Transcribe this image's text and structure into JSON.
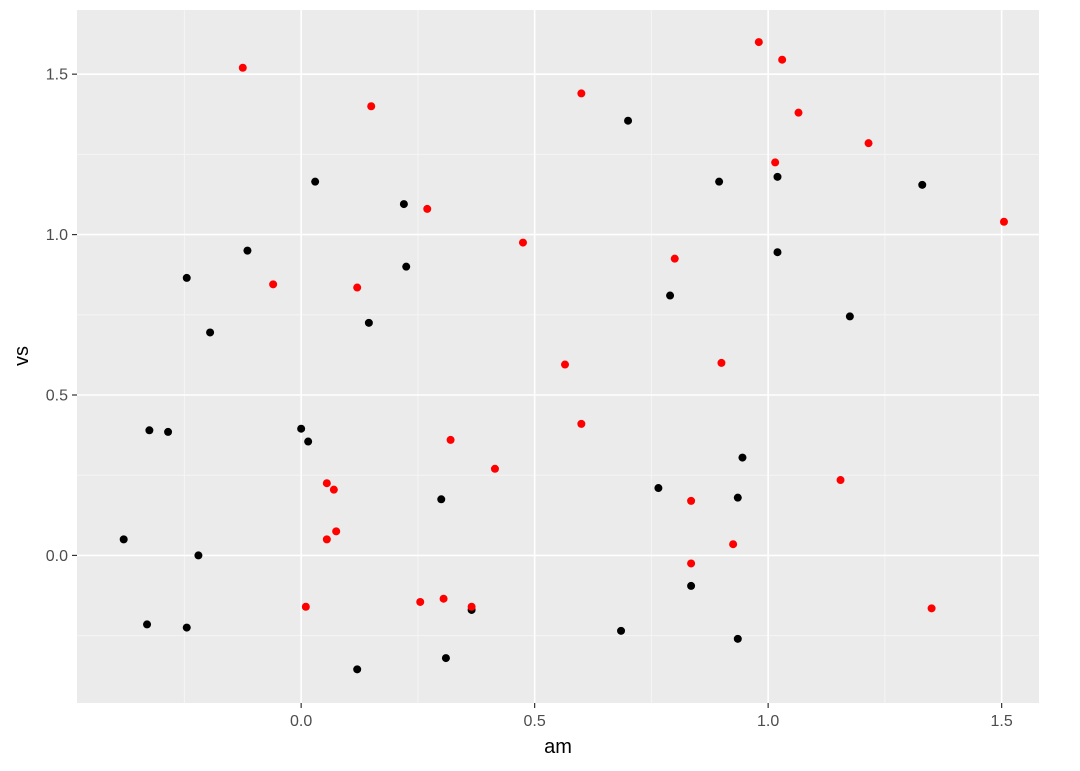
{
  "chart_data": {
    "type": "scatter",
    "xlabel": "am",
    "ylabel": "vs",
    "xlim": [
      -0.48,
      1.58
    ],
    "ylim": [
      -0.46,
      1.7
    ],
    "x_ticks": [
      0.0,
      0.5,
      1.0,
      1.5
    ],
    "x_tick_labels": [
      "0.0",
      "0.5",
      "1.0",
      "1.5"
    ],
    "y_ticks": [
      0.0,
      0.5,
      1.0,
      1.5
    ],
    "y_tick_labels": [
      "0.0",
      "0.5",
      "1.0",
      "1.5"
    ],
    "grid": true,
    "legend": "none",
    "colors": {
      "panel": "#EBEBEB",
      "grid_major": "#FFFFFF",
      "grid_minor": "#F5F5F5",
      "black_points": "#000000",
      "red_points": "#FF0000"
    },
    "series": [
      {
        "color": "#000000",
        "points": [
          {
            "x": -0.38,
            "y": 0.05
          },
          {
            "x": -0.325,
            "y": 0.39
          },
          {
            "x": -0.285,
            "y": 0.385
          },
          {
            "x": -0.33,
            "y": -0.215
          },
          {
            "x": -0.245,
            "y": 0.865
          },
          {
            "x": -0.245,
            "y": -0.225
          },
          {
            "x": -0.22,
            "y": 0.0
          },
          {
            "x": -0.195,
            "y": 0.695
          },
          {
            "x": -0.115,
            "y": 0.95
          },
          {
            "x": 0.0,
            "y": 0.395
          },
          {
            "x": 0.015,
            "y": 0.355
          },
          {
            "x": 0.03,
            "y": 1.165
          },
          {
            "x": 0.12,
            "y": -0.355
          },
          {
            "x": 0.145,
            "y": 0.725
          },
          {
            "x": 0.22,
            "y": 1.095
          },
          {
            "x": 0.225,
            "y": 0.9
          },
          {
            "x": 0.3,
            "y": 0.175
          },
          {
            "x": 0.31,
            "y": -0.32
          },
          {
            "x": 0.365,
            "y": -0.17
          },
          {
            "x": 0.685,
            "y": -0.235
          },
          {
            "x": 0.7,
            "y": 1.355
          },
          {
            "x": 0.765,
            "y": 0.21
          },
          {
            "x": 0.79,
            "y": 0.81
          },
          {
            "x": 0.835,
            "y": -0.095
          },
          {
            "x": 0.895,
            "y": 1.165
          },
          {
            "x": 0.935,
            "y": 0.18
          },
          {
            "x": 0.935,
            "y": -0.26
          },
          {
            "x": 0.945,
            "y": 0.305
          },
          {
            "x": 1.02,
            "y": 0.945
          },
          {
            "x": 1.02,
            "y": 1.18
          },
          {
            "x": 1.175,
            "y": 0.745
          },
          {
            "x": 1.33,
            "y": 1.155
          }
        ]
      },
      {
        "color": "#FF0000",
        "points": [
          {
            "x": -0.125,
            "y": 1.52
          },
          {
            "x": -0.06,
            "y": 0.845
          },
          {
            "x": 0.01,
            "y": -0.16
          },
          {
            "x": 0.055,
            "y": 0.225
          },
          {
            "x": 0.055,
            "y": 0.05
          },
          {
            "x": 0.07,
            "y": 0.205
          },
          {
            "x": 0.075,
            "y": 0.075
          },
          {
            "x": 0.12,
            "y": 0.835
          },
          {
            "x": 0.15,
            "y": 1.4
          },
          {
            "x": 0.255,
            "y": -0.145
          },
          {
            "x": 0.27,
            "y": 1.08
          },
          {
            "x": 0.305,
            "y": -0.135
          },
          {
            "x": 0.32,
            "y": 0.36
          },
          {
            "x": 0.365,
            "y": -0.16
          },
          {
            "x": 0.415,
            "y": 0.27
          },
          {
            "x": 0.475,
            "y": 0.975
          },
          {
            "x": 0.565,
            "y": 0.595
          },
          {
            "x": 0.6,
            "y": 1.44
          },
          {
            "x": 0.6,
            "y": 0.41
          },
          {
            "x": 0.8,
            "y": 0.925
          },
          {
            "x": 0.835,
            "y": 0.17
          },
          {
            "x": 0.835,
            "y": -0.025
          },
          {
            "x": 0.9,
            "y": 0.6
          },
          {
            "x": 0.925,
            "y": 0.035
          },
          {
            "x": 0.98,
            "y": 1.6
          },
          {
            "x": 1.015,
            "y": 1.225
          },
          {
            "x": 1.03,
            "y": 1.545
          },
          {
            "x": 1.065,
            "y": 1.38
          },
          {
            "x": 1.155,
            "y": 0.235
          },
          {
            "x": 1.215,
            "y": 1.285
          },
          {
            "x": 1.35,
            "y": -0.165
          },
          {
            "x": 1.505,
            "y": 1.04
          }
        ]
      }
    ]
  }
}
